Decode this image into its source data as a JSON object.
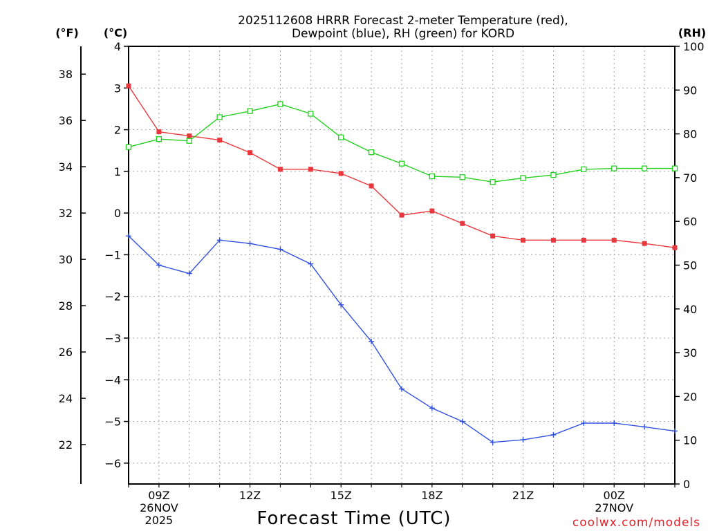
{
  "chart_data": {
    "type": "line",
    "title_line1": "2025112608 HRRR Forecast 2-meter Temperature (red),",
    "title_line2": "Dewpoint (blue), RH (green) for KORD",
    "xlabel": "Forecast Time (UTC)",
    "credit": "coolwx.com/models",
    "units": {
      "fahrenheit": "(°F)",
      "celsius": "(°C)",
      "rh": "(RH)"
    },
    "x_hours": [
      8,
      9,
      10,
      11,
      12,
      13,
      14,
      15,
      16,
      17,
      18,
      19,
      20,
      21,
      22,
      23,
      24,
      25,
      26
    ],
    "xlim": [
      8,
      26
    ],
    "x_ticks": [
      {
        "hour": 9,
        "lines": [
          "09Z",
          "26NOV",
          "2025"
        ]
      },
      {
        "hour": 12,
        "lines": [
          "12Z"
        ]
      },
      {
        "hour": 15,
        "lines": [
          "15Z"
        ]
      },
      {
        "hour": 18,
        "lines": [
          "18Z"
        ]
      },
      {
        "hour": 21,
        "lines": [
          "21Z"
        ]
      },
      {
        "hour": 24,
        "lines": [
          "00Z",
          "27NOV"
        ]
      }
    ],
    "celsius_axis": {
      "range": [
        -6.5,
        4.0
      ],
      "ticks": [
        4,
        3,
        2,
        1,
        0,
        -1,
        -2,
        -3,
        -4,
        -5,
        -6
      ],
      "tick_labels": [
        "4",
        "3",
        "2",
        "1",
        "0",
        "−1",
        "−2",
        "−3",
        "−4",
        "−5",
        "−6"
      ]
    },
    "fahrenheit_axis": {
      "ticks": [
        38,
        36,
        34,
        32,
        30,
        28,
        26,
        24,
        22
      ],
      "tick_labels": [
        "38",
        "36",
        "34",
        "32",
        "30",
        "28",
        "26",
        "24",
        "22"
      ]
    },
    "rh_axis": {
      "range": [
        0,
        100
      ],
      "ticks": [
        100,
        90,
        80,
        70,
        60,
        50,
        40,
        30,
        20,
        10,
        0
      ],
      "tick_labels": [
        "100",
        "90",
        "80",
        "70",
        "60",
        "50",
        "40",
        "30",
        "20",
        "10",
        "0"
      ]
    },
    "series": [
      {
        "name": "Temperature",
        "axis": "celsius",
        "color": "#e8383d",
        "marker": "filled-square",
        "values": [
          3.05,
          1.95,
          1.85,
          1.75,
          1.45,
          1.05,
          1.05,
          0.95,
          0.65,
          -0.05,
          0.05,
          -0.25,
          -0.55,
          -0.65,
          -0.65,
          -0.65,
          -0.65,
          -0.73,
          -0.83
        ]
      },
      {
        "name": "Dewpoint",
        "axis": "celsius",
        "color": "#3050e0",
        "marker": "plus",
        "values": [
          -0.55,
          -1.25,
          -1.45,
          -0.65,
          -0.73,
          -0.87,
          -1.22,
          -2.2,
          -3.08,
          -4.22,
          -4.68,
          -5.0,
          -5.5,
          -5.44,
          -5.32,
          -5.04,
          -5.04,
          -5.13,
          -5.23
        ]
      },
      {
        "name": "RH",
        "axis": "rh",
        "color": "#22d01e",
        "marker": "open-square",
        "values": [
          77.0,
          78.8,
          78.4,
          83.8,
          85.2,
          86.8,
          84.6,
          79.2,
          75.8,
          73.2,
          70.3,
          70.1,
          69.0,
          69.9,
          70.6,
          71.9,
          72.1,
          72.1,
          72.1
        ]
      }
    ]
  }
}
